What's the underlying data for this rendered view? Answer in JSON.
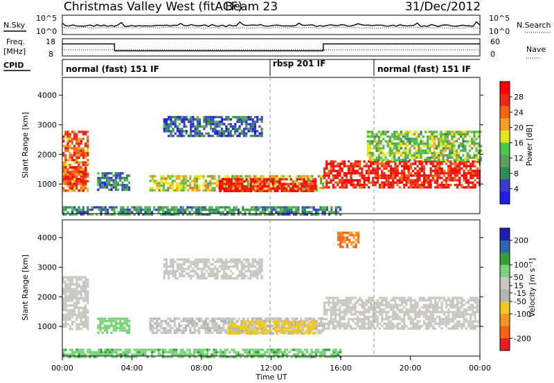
{
  "header": {
    "station": "Christmas Valley West (fitACF)",
    "beam": "Beam 23",
    "date": "31/Dec/2012"
  },
  "noise_panel": {
    "left_label": "N.Sky",
    "right_label": "N.Search",
    "left_ticks": [
      "10^5",
      "10^0"
    ],
    "right_ticks": [
      "10^5",
      "10^0"
    ]
  },
  "freq_panel": {
    "left_label_line1": "Freq.",
    "left_label_line2": "[MHz]",
    "right_label": "Nave",
    "left_ticks": [
      "18",
      "8"
    ],
    "right_ticks": [
      "60",
      "0"
    ],
    "freq_steps": [
      {
        "start": 0,
        "end": 3,
        "value": 15
      },
      {
        "start": 3,
        "end": 15,
        "value": 11
      },
      {
        "start": 15,
        "end": 24,
        "value": 15
      }
    ]
  },
  "cpid": {
    "label": "CPID",
    "modes": [
      {
        "start": 0,
        "end": 12,
        "name": "normal (fast) 151 IF"
      },
      {
        "start": 12,
        "end": 18,
        "name": "rbsp 201 IF"
      },
      {
        "start": 18,
        "end": 24,
        "name": "normal (fast) 151 IF"
      }
    ]
  },
  "colors": {
    "power": [
      "#1e1ee6",
      "#3c3cc8",
      "#2e8b57",
      "#5aa05a",
      "#46c846",
      "#e6e61e",
      "#f5a01e",
      "#f06414",
      "#e62814",
      "#ff0000"
    ],
    "velocity": [
      "#1e1eb4",
      "#3264b4",
      "#32a032",
      "#7ad27a",
      "#c8c8c0",
      "#b4b4b4",
      "#f0c81e",
      "#f5961e",
      "#f06414",
      "#e61e1e"
    ]
  },
  "chart_data": [
    {
      "type": "heatmap",
      "title": "",
      "xlabel": "",
      "ylabel": "Slant Range [km]",
      "x_ticks": [
        "00:00",
        "04:00",
        "08:00",
        "12:00",
        "16:00",
        "20:00",
        "00:00"
      ],
      "x_range_hours": [
        0,
        24
      ],
      "ylim": [
        0,
        4600
      ],
      "y_ticks": [
        1000,
        2000,
        3000,
        4000
      ],
      "colorbar": {
        "label": "Power [dB]",
        "ticks": [
          4,
          8,
          12,
          16,
          20,
          24,
          28
        ],
        "range": [
          0,
          32
        ]
      },
      "features": [
        {
          "t0": 0.0,
          "t1": 1.5,
          "r0": 800,
          "r1": 2800,
          "level": 0.75
        },
        {
          "t0": 0.0,
          "t1": 1.4,
          "r0": 1000,
          "r1": 1600,
          "level": 0.85
        },
        {
          "t0": 2.0,
          "t1": 3.8,
          "r0": 800,
          "r1": 1400,
          "level": 0.25
        },
        {
          "t0": 5.8,
          "t1": 11.5,
          "r0": 2600,
          "r1": 3300,
          "level": 0.2
        },
        {
          "t0": 5.0,
          "t1": 15.0,
          "r0": 800,
          "r1": 1300,
          "level": 0.55
        },
        {
          "t0": 9.0,
          "t1": 14.5,
          "r0": 800,
          "r1": 1200,
          "level": 0.9
        },
        {
          "t0": 15.0,
          "t1": 24.0,
          "r0": 900,
          "r1": 1800,
          "level": 0.9
        },
        {
          "t0": 17.5,
          "t1": 24.0,
          "r0": 1800,
          "r1": 2800,
          "level": 0.45
        },
        {
          "t0": 0.0,
          "t1": 16.0,
          "r0": 0,
          "r1": 250,
          "level": 0.3
        }
      ]
    },
    {
      "type": "heatmap",
      "title": "",
      "xlabel": "Time UT",
      "ylabel": "Slant Range [km]",
      "x_ticks": [
        "00:00",
        "04:00",
        "08:00",
        "12:00",
        "16:00",
        "20:00",
        "00:00"
      ],
      "x_range_hours": [
        0,
        24
      ],
      "ylim": [
        0,
        4600
      ],
      "y_ticks": [
        1000,
        2000,
        3000,
        4000
      ],
      "colorbar": {
        "label": "Velocity [m s⁻¹]",
        "ticks": [
          200,
          100,
          50,
          15,
          -15,
          -50,
          -100,
          -200
        ],
        "range": [
          -250,
          250
        ]
      },
      "features": [
        {
          "t0": 0.0,
          "t1": 1.5,
          "r0": 900,
          "r1": 2700,
          "velocity": 0
        },
        {
          "t0": 2.0,
          "t1": 3.8,
          "r0": 800,
          "r1": 1300,
          "velocity": 30
        },
        {
          "t0": 5.8,
          "t1": 11.5,
          "r0": 2600,
          "r1": 3300,
          "velocity": 0
        },
        {
          "t0": 5.0,
          "t1": 15.0,
          "r0": 800,
          "r1": 1300,
          "velocity": -10
        },
        {
          "t0": 9.5,
          "t1": 14.5,
          "r0": 800,
          "r1": 1200,
          "velocity": -60
        },
        {
          "t0": 15.0,
          "t1": 24.0,
          "r0": 900,
          "r1": 2000,
          "velocity": 0
        },
        {
          "t0": 15.8,
          "t1": 17.0,
          "r0": 3700,
          "r1": 4200,
          "velocity": -200
        },
        {
          "t0": 0.0,
          "t1": 16.0,
          "r0": 0,
          "r1": 250,
          "velocity": 40
        }
      ]
    }
  ]
}
